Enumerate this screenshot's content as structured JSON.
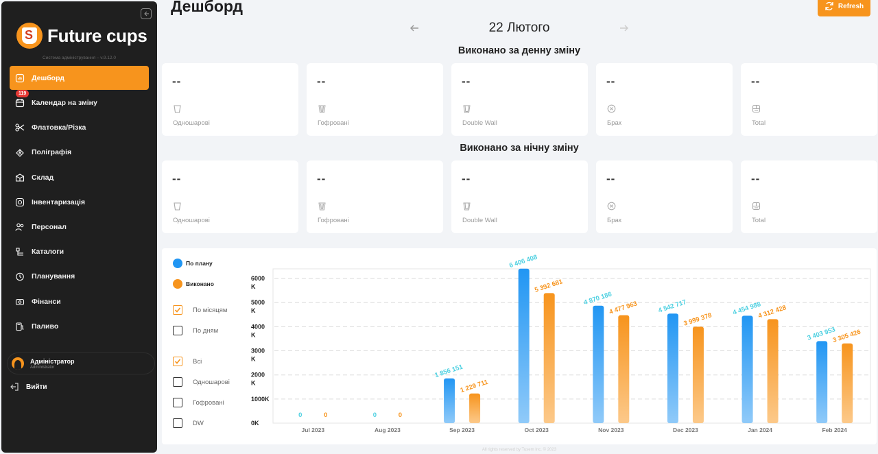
{
  "sidebar": {
    "logo_text": "Future cups",
    "version": "Система адміністрування – v.9.12.0",
    "items": [
      {
        "label": "Дешборд",
        "icon": "dashboard-icon",
        "active": true
      },
      {
        "label": "Календар на зміну",
        "icon": "calendar-icon",
        "badge": "119"
      },
      {
        "label": "Флатовка/Різка",
        "icon": "scissors-icon"
      },
      {
        "label": "Поліграфія",
        "icon": "print-icon"
      },
      {
        "label": "Склад",
        "icon": "warehouse-icon"
      },
      {
        "label": "Інвентаризація",
        "icon": "inventory-icon"
      },
      {
        "label": "Персонал",
        "icon": "people-icon"
      },
      {
        "label": "Каталоги",
        "icon": "catalog-icon"
      },
      {
        "label": "Планування",
        "icon": "planning-icon"
      },
      {
        "label": "Фінанси",
        "icon": "finance-icon"
      },
      {
        "label": "Паливо",
        "icon": "fuel-icon"
      }
    ],
    "user": {
      "name": "Адміністратор",
      "role": "Administrator"
    },
    "logout_label": "Вийти"
  },
  "header": {
    "title": "Дешборд",
    "refresh_label": "Refresh",
    "date": "22 Лютого"
  },
  "day_shift": {
    "title": "Виконано за денну зміну",
    "cards": [
      {
        "value": "--",
        "label": "Одношарові",
        "icon": "single-cup-icon"
      },
      {
        "value": "--",
        "label": "Гофровані",
        "icon": "ripple-cup-icon"
      },
      {
        "value": "--",
        "label": "Double Wall",
        "icon": "double-wall-cup-icon"
      },
      {
        "value": "--",
        "label": "Брак",
        "icon": "defect-icon"
      },
      {
        "value": "--",
        "label": "Total",
        "icon": "total-icon"
      }
    ]
  },
  "night_shift": {
    "title": "Виконано за нічну зміну",
    "cards": [
      {
        "value": "--",
        "label": "Одношарові",
        "icon": "single-cup-icon"
      },
      {
        "value": "--",
        "label": "Гофровані",
        "icon": "ripple-cup-icon"
      },
      {
        "value": "--",
        "label": "Double Wall",
        "icon": "double-wall-cup-icon"
      },
      {
        "value": "--",
        "label": "Брак",
        "icon": "defect-icon"
      },
      {
        "value": "--",
        "label": "Total",
        "icon": "total-icon"
      }
    ]
  },
  "chart_panel": {
    "legend": [
      {
        "label": "По плану",
        "color": "#2196f3"
      },
      {
        "label": "Виконано",
        "color": "#f7941d"
      }
    ],
    "period_filters": [
      {
        "label": "По місяцям",
        "checked": true
      },
      {
        "label": "По дням",
        "checked": false
      }
    ],
    "type_filters": [
      {
        "label": "Всі",
        "checked": true
      },
      {
        "label": "Одношарові",
        "checked": false
      },
      {
        "label": "Гофровані",
        "checked": false
      },
      {
        "label": "DW",
        "checked": false
      }
    ]
  },
  "chart_data": {
    "type": "bar",
    "categories": [
      "Jul 2023",
      "Aug 2023",
      "Sep 2023",
      "Oct 2023",
      "Nov 2023",
      "Dec 2023",
      "Jan 2024",
      "Feb 2024"
    ],
    "series": [
      {
        "name": "По плану",
        "color": "#2196f3",
        "values": [
          0,
          0,
          1856151,
          6406408,
          4870186,
          4542717,
          4454988,
          3403953
        ],
        "labels": [
          "0",
          "0",
          "1 856 151",
          "6 406 408",
          "4 870 186",
          "4 542 717",
          "4 454 988",
          "3 403 953"
        ]
      },
      {
        "name": "Виконано",
        "color": "#f7941d",
        "values": [
          0,
          0,
          1229711,
          5392681,
          4477963,
          3999378,
          4312428,
          3305426
        ],
        "labels": [
          "0",
          "0",
          "1 229 711",
          "5 392 681",
          "4 477 963",
          "3 999 378",
          "4 312 428",
          "3 305 426"
        ]
      }
    ],
    "y_ticks": [
      {
        "value": 0,
        "label": "0K"
      },
      {
        "value": 1000000,
        "label": "1000K"
      },
      {
        "value": 2000000,
        "label": "2000\nK"
      },
      {
        "value": 3000000,
        "label": "3000\nK"
      },
      {
        "value": 4000000,
        "label": "4000\nK"
      },
      {
        "value": 5000000,
        "label": "5000\nK"
      },
      {
        "value": 6000000,
        "label": "6000\nK"
      }
    ],
    "ylim": [
      0,
      6400000
    ],
    "grid": true
  },
  "footer": "All rights reserved by Tusem Inc. © 2023"
}
